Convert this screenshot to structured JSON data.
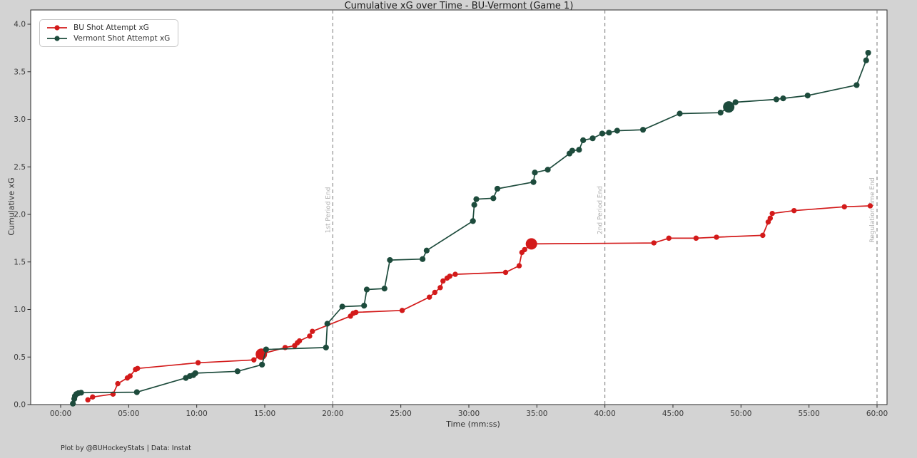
{
  "figure": {
    "footer": "Plot by @BUHockeyStats | Data: Instat",
    "background_color": "#d3d3d3",
    "plot_background_color": "#ffffff"
  },
  "chart_data": {
    "type": "line",
    "title": "Cumulative xG over Time - BU-Vermont (Game 1)",
    "xlabel": "Time (mm:ss)",
    "ylabel": "Cumulative xG",
    "xlim": [
      0,
      60
    ],
    "ylim": [
      0,
      4.0
    ],
    "grid": false,
    "legend_position": "upper-left",
    "x_tick_values": [
      0,
      5,
      10,
      15,
      20,
      25,
      30,
      35,
      40,
      45,
      50,
      55,
      60
    ],
    "x_tick_labels": [
      "00:00",
      "05:00",
      "10:00",
      "15:00",
      "20:00",
      "25:00",
      "30:00",
      "35:00",
      "40:00",
      "45:00",
      "50:00",
      "55:00",
      "60:00"
    ],
    "y_tick_values": [
      0,
      0.5,
      1.0,
      1.5,
      2.0,
      2.5,
      3.0,
      3.5,
      4.0
    ],
    "y_tick_labels": [
      "0.0",
      "0.5",
      "1.0",
      "1.5",
      "2.0",
      "2.5",
      "3.0",
      "3.5",
      "4.0"
    ],
    "period_lines": [
      {
        "time_min": 20,
        "label": "1st Period End"
      },
      {
        "time_min": 40,
        "label": "2nd Period End"
      },
      {
        "time_min": 60,
        "label": "Regulation time End"
      }
    ],
    "period_line_color": "#777777",
    "period_label_color": "#aeaeae",
    "series": [
      {
        "name": "BU Shot Attempt xG",
        "color": "#d31a1a",
        "marker_radius": 3.7,
        "points": [
          [
            2.0,
            0.05
          ],
          [
            2.35,
            0.08
          ],
          [
            3.85,
            0.11
          ],
          [
            4.2,
            0.22
          ],
          [
            4.9,
            0.28
          ],
          [
            5.1,
            0.3
          ],
          [
            5.5,
            0.37
          ],
          [
            5.65,
            0.38
          ],
          [
            10.1,
            0.44
          ],
          [
            14.2,
            0.47
          ],
          [
            14.75,
            0.53
          ],
          [
            16.5,
            0.6
          ],
          [
            17.2,
            0.62
          ],
          [
            17.4,
            0.65
          ],
          [
            17.55,
            0.67
          ],
          [
            18.3,
            0.72
          ],
          [
            18.5,
            0.77
          ],
          [
            21.3,
            0.93
          ],
          [
            21.5,
            0.96
          ],
          [
            21.7,
            0.97
          ],
          [
            25.1,
            0.99
          ],
          [
            27.1,
            1.13
          ],
          [
            27.5,
            1.18
          ],
          [
            27.9,
            1.23
          ],
          [
            28.1,
            1.3
          ],
          [
            28.4,
            1.33
          ],
          [
            28.6,
            1.35
          ],
          [
            29.0,
            1.37
          ],
          [
            32.7,
            1.39
          ],
          [
            33.7,
            1.46
          ],
          [
            33.9,
            1.6
          ],
          [
            34.1,
            1.63
          ],
          [
            34.6,
            1.69
          ],
          [
            43.6,
            1.7
          ],
          [
            44.7,
            1.75
          ],
          [
            46.7,
            1.75
          ],
          [
            48.2,
            1.76
          ],
          [
            51.6,
            1.78
          ],
          [
            52.0,
            1.92
          ],
          [
            52.15,
            1.96
          ],
          [
            52.3,
            2.01
          ],
          [
            53.9,
            2.04
          ],
          [
            57.6,
            2.08
          ],
          [
            59.5,
            2.09
          ]
        ],
        "highlight_points": [
          [
            14.75,
            0.53
          ],
          [
            34.6,
            1.69
          ]
        ],
        "highlight_radius": 8
      },
      {
        "name": "Vermont Shot Attempt xG",
        "color": "#1d4b3c",
        "marker_radius": 4.1,
        "points": [
          [
            0.9,
            0.01
          ],
          [
            1.0,
            0.06
          ],
          [
            1.05,
            0.09
          ],
          [
            1.15,
            0.11
          ],
          [
            1.3,
            0.12
          ],
          [
            1.5,
            0.125
          ],
          [
            5.6,
            0.13
          ],
          [
            9.2,
            0.28
          ],
          [
            9.5,
            0.3
          ],
          [
            9.75,
            0.31
          ],
          [
            9.9,
            0.33
          ],
          [
            13.0,
            0.35
          ],
          [
            14.8,
            0.42
          ],
          [
            15.1,
            0.58
          ],
          [
            19.5,
            0.6
          ],
          [
            19.6,
            0.85
          ],
          [
            20.7,
            1.03
          ],
          [
            22.3,
            1.04
          ],
          [
            22.5,
            1.21
          ],
          [
            23.8,
            1.22
          ],
          [
            24.2,
            1.52
          ],
          [
            26.6,
            1.53
          ],
          [
            26.9,
            1.62
          ],
          [
            30.3,
            1.93
          ],
          [
            30.4,
            2.1
          ],
          [
            30.55,
            2.16
          ],
          [
            31.8,
            2.17
          ],
          [
            32.1,
            2.27
          ],
          [
            34.75,
            2.34
          ],
          [
            34.85,
            2.44
          ],
          [
            35.8,
            2.47
          ],
          [
            37.4,
            2.64
          ],
          [
            37.6,
            2.67
          ],
          [
            38.1,
            2.68
          ],
          [
            38.4,
            2.78
          ],
          [
            39.1,
            2.8
          ],
          [
            39.8,
            2.85
          ],
          [
            40.3,
            2.86
          ],
          [
            40.9,
            2.88
          ],
          [
            42.8,
            2.89
          ],
          [
            45.5,
            3.06
          ],
          [
            48.5,
            3.07
          ],
          [
            49.1,
            3.13
          ],
          [
            49.6,
            3.18
          ],
          [
            52.6,
            3.21
          ],
          [
            53.1,
            3.22
          ],
          [
            54.9,
            3.25
          ],
          [
            58.5,
            3.36
          ],
          [
            59.2,
            3.62
          ],
          [
            59.35,
            3.7
          ]
        ],
        "highlight_points": [
          [
            49.1,
            3.13
          ]
        ],
        "highlight_radius": 8
      }
    ]
  }
}
